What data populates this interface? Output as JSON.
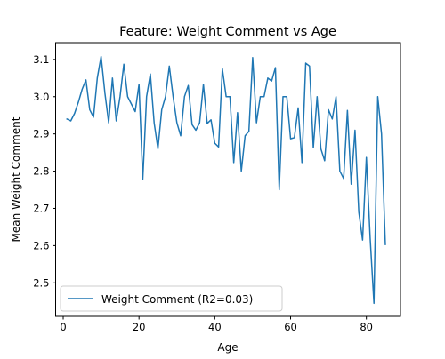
{
  "chart_data": {
    "type": "line",
    "title": "Feature: Weight Comment vs Age",
    "xlabel": "Age",
    "ylabel": "Mean Weight Comment",
    "xlim": [
      -2,
      89
    ],
    "ylim": [
      2.41,
      3.145
    ],
    "xticks": [
      0,
      20,
      40,
      60,
      80
    ],
    "xtick_labels": [
      "0",
      "20",
      "40",
      "60",
      "80"
    ],
    "yticks": [
      2.5,
      2.6,
      2.7,
      2.8,
      2.9,
      3.0,
      3.1
    ],
    "ytick_labels": [
      "2.5",
      "2.6",
      "2.7",
      "2.8",
      "2.9",
      "3.0",
      "3.1"
    ],
    "grid": false,
    "legend_position": "lower-left",
    "series": [
      {
        "name": "Weight Comment (R2=0.03)",
        "color": "#1f77b4",
        "x": [
          1,
          2,
          3,
          4,
          5,
          6,
          7,
          8,
          9,
          10,
          11,
          12,
          13,
          14,
          15,
          16,
          17,
          18,
          19,
          20,
          21,
          22,
          23,
          24,
          25,
          26,
          27,
          28,
          29,
          30,
          31,
          32,
          33,
          34,
          35,
          36,
          37,
          38,
          39,
          40,
          41,
          42,
          43,
          44,
          45,
          46,
          47,
          48,
          49,
          50,
          51,
          52,
          53,
          54,
          55,
          56,
          57,
          58,
          59,
          60,
          61,
          62,
          63,
          64,
          65,
          66,
          67,
          68,
          69,
          70,
          71,
          72,
          73,
          74,
          75,
          76,
          77,
          78,
          79,
          80,
          81,
          82,
          83,
          84,
          85
        ],
        "values": [
          2.94,
          2.935,
          2.955,
          2.985,
          3.02,
          3.045,
          2.965,
          2.945,
          3.05,
          3.108,
          3.01,
          2.93,
          3.05,
          2.935,
          3.0,
          3.087,
          3.0,
          2.98,
          2.96,
          3.033,
          2.778,
          3.0,
          3.061,
          2.93,
          2.86,
          2.965,
          3.0,
          3.082,
          3.0,
          2.93,
          2.895,
          3.0,
          3.03,
          2.925,
          2.91,
          2.93,
          3.033,
          2.928,
          2.938,
          2.875,
          2.865,
          3.075,
          3.0,
          3.0,
          2.823,
          2.957,
          2.8,
          2.895,
          2.907,
          3.105,
          2.93,
          3.0,
          3.0,
          3.05,
          3.042,
          3.078,
          2.75,
          3.0,
          3.0,
          2.887,
          2.89,
          2.97,
          2.823,
          3.09,
          3.082,
          2.863,
          3.0,
          2.86,
          2.828,
          2.965,
          2.94,
          3.0,
          2.8,
          2.78,
          2.963,
          2.765,
          2.91,
          2.69,
          2.615,
          2.837,
          2.62,
          2.445,
          3.0,
          2.9,
          2.603
        ]
      }
    ]
  }
}
